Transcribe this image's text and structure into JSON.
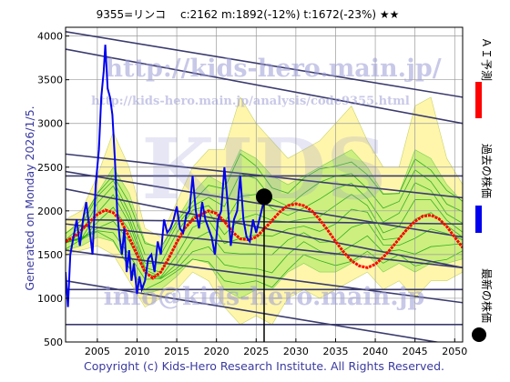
{
  "header": {
    "title": "9355=リンコ　 c:2162  m:1892(-12%)  t:1672(-23%)  ★★"
  },
  "side_left": "Generated on Monday 2026/1/5.",
  "legend": {
    "ai": "ＡＩ予測",
    "past": "過去の株価",
    "latest": "最新の株価"
  },
  "watermarks": {
    "url": "http://kids-hero.main.jp/",
    "analysis": "http://kids-hero.main.jp/analysis/code9355.html",
    "big": "KIDS",
    "mail": "info@kids-hero.main.jp"
  },
  "footer": "Copyright (c) Kids-Hero Research Institute. All Rights Reserved.",
  "colors": {
    "price": "#0000ee",
    "prediction": "#ff0000",
    "trend": "#3b3b6e",
    "band": "#c8ee7a",
    "band_alt": "#fff59c",
    "paths": "#009900",
    "latest_marker": "#000000"
  },
  "chart_data": {
    "type": "line",
    "xlim": [
      2001,
      2051
    ],
    "ylim": [
      500,
      4100
    ],
    "x_ticks": [
      2005,
      2010,
      2015,
      2020,
      2025,
      2030,
      2035,
      2040,
      2045,
      2050
    ],
    "y_ticks": [
      500,
      1000,
      1500,
      2000,
      2500,
      3000,
      3500,
      4000
    ],
    "grid": true,
    "latest": {
      "x": 2026.0,
      "y": 2162
    },
    "series": [
      {
        "role": "price",
        "x": [
          2001.0,
          2001.3,
          2001.6,
          2002.0,
          2002.4,
          2002.8,
          2003.2,
          2003.6,
          2004.0,
          2004.4,
          2004.8,
          2005.2,
          2005.5,
          2005.8,
          2006.0,
          2006.3,
          2006.6,
          2006.9,
          2007.2,
          2007.5,
          2007.8,
          2008.1,
          2008.4,
          2008.7,
          2009.0,
          2009.3,
          2009.6,
          2010.0,
          2010.3,
          2010.6,
          2011.0,
          2011.4,
          2011.8,
          2012.2,
          2012.6,
          2013.0,
          2013.4,
          2013.8,
          2014.2,
          2014.6,
          2015.0,
          2015.4,
          2015.8,
          2016.2,
          2016.6,
          2017.0,
          2017.4,
          2017.8,
          2018.2,
          2018.6,
          2019.0,
          2019.4,
          2019.8,
          2020.2,
          2020.6,
          2021.0,
          2021.4,
          2021.8,
          2022.2,
          2022.6,
          2023.0,
          2023.4,
          2023.8,
          2024.2,
          2024.6,
          2025.0,
          2025.4,
          2025.8,
          2026.0
        ],
        "y": [
          1300,
          900,
          1500,
          1700,
          1900,
          1600,
          1900,
          2100,
          1800,
          1500,
          2300,
          2700,
          3300,
          3600,
          3900,
          3400,
          3300,
          3100,
          2600,
          2000,
          1700,
          1500,
          1800,
          1300,
          1550,
          1200,
          1400,
          1050,
          1250,
          1100,
          1200,
          1450,
          1500,
          1300,
          1650,
          1500,
          1900,
          1750,
          1800,
          1900,
          2050,
          1800,
          1750,
          1950,
          2000,
          2400,
          2000,
          1800,
          2100,
          1900,
          1800,
          1700,
          1500,
          1900,
          2000,
          2500,
          2100,
          1600,
          1900,
          2000,
          2400,
          1900,
          1700,
          1650,
          1900,
          1750,
          1900,
          2050,
          2162
        ]
      },
      {
        "role": "prediction",
        "x": [
          2001,
          2002,
          2003,
          2004,
          2005,
          2006,
          2007,
          2008,
          2009,
          2010,
          2011,
          2012,
          2013,
          2014,
          2015,
          2016,
          2017,
          2018,
          2019,
          2020,
          2021,
          2022,
          2023,
          2024,
          2025,
          2026,
          2027,
          2028,
          2029,
          2030,
          2031,
          2032,
          2033,
          2034,
          2035,
          2036,
          2037,
          2038,
          2039,
          2040,
          2041,
          2042,
          2043,
          2044,
          2045,
          2046,
          2047,
          2048,
          2049,
          2050,
          2051
        ],
        "y": [
          1650,
          1700,
          1780,
          1870,
          1960,
          2010,
          1980,
          1880,
          1700,
          1500,
          1300,
          1230,
          1300,
          1460,
          1640,
          1800,
          1900,
          1960,
          2000,
          1970,
          1880,
          1760,
          1680,
          1670,
          1700,
          1790,
          1890,
          1990,
          2060,
          2080,
          2060,
          2000,
          1900,
          1780,
          1650,
          1530,
          1430,
          1370,
          1350,
          1390,
          1470,
          1570,
          1680,
          1790,
          1880,
          1940,
          1950,
          1910,
          1820,
          1700,
          1580
        ]
      }
    ],
    "trend_lines": [
      {
        "x": [
          2001,
          2051
        ],
        "y": [
          4050,
          3300
        ]
      },
      {
        "x": [
          2001,
          2051
        ],
        "y": [
          3850,
          3000
        ]
      },
      {
        "x": [
          2001,
          2051
        ],
        "y": [
          2650,
          2150
        ]
      },
      {
        "x": [
          2001,
          2051
        ],
        "y": [
          2450,
          1700
        ]
      },
      {
        "x": [
          2001,
          2051
        ],
        "y": [
          2250,
          1350
        ]
      },
      {
        "x": [
          2001,
          2051
        ],
        "y": [
          1900,
          1850
        ]
      },
      {
        "x": [
          2001,
          2051
        ],
        "y": [
          1550,
          950
        ]
      },
      {
        "x": [
          2001,
          2051
        ],
        "y": [
          1200,
          450
        ]
      },
      {
        "x": [
          2001,
          2051
        ],
        "y": [
          700,
          700
        ]
      },
      {
        "x": [
          2001,
          2051
        ],
        "y": [
          1850,
          1350
        ]
      },
      {
        "x": [
          2001,
          2051
        ],
        "y": [
          2400,
          2400
        ]
      },
      {
        "x": [
          2001,
          2051
        ],
        "y": [
          1100,
          1100
        ]
      }
    ],
    "bands": {
      "x": [
        2001,
        2003,
        2005,
        2007,
        2009,
        2011,
        2013,
        2015,
        2017,
        2019,
        2021,
        2023,
        2025,
        2027,
        2029,
        2031,
        2033,
        2035,
        2037,
        2039,
        2041,
        2043,
        2045,
        2047,
        2049,
        2051
      ],
      "outer_upper": [
        1900,
        2000,
        2400,
        2900,
        2500,
        1800,
        1700,
        2100,
        2500,
        2700,
        2700,
        3300,
        3000,
        2800,
        2600,
        2700,
        2800,
        3000,
        3200,
        2800,
        2500,
        2500,
        3200,
        3300,
        2600,
        2300
      ],
      "outer_lower": [
        1500,
        1550,
        1600,
        1500,
        1200,
        900,
        1000,
        1100,
        1300,
        1200,
        900,
        700,
        800,
        700,
        1000,
        1100,
        1000,
        1100,
        1200,
        1300,
        1100,
        1200,
        1000,
        1200,
        1200,
        1300
      ],
      "inner_upper": [
        1750,
        1850,
        2200,
        2500,
        2200,
        1650,
        1550,
        1900,
        2200,
        2400,
        2300,
        2700,
        2600,
        2400,
        2300,
        2400,
        2500,
        2600,
        2700,
        2500,
        2200,
        2200,
        2700,
        2600,
        2300,
        2100
      ],
      "inner_lower": [
        1550,
        1600,
        1700,
        1650,
        1350,
        1050,
        1100,
        1250,
        1450,
        1400,
        1100,
        1000,
        1100,
        1100,
        1300,
        1400,
        1300,
        1300,
        1400,
        1500,
        1300,
        1400,
        1300,
        1400,
        1400,
        1450
      ]
    }
  }
}
